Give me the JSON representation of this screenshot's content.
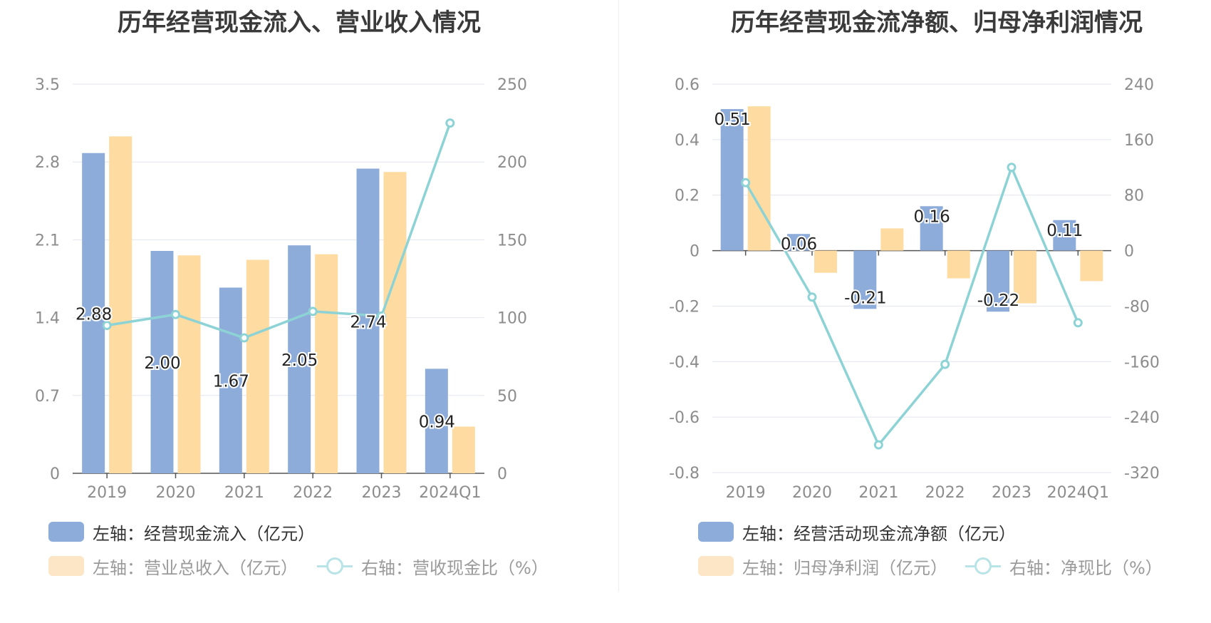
{
  "colors": {
    "bar_blue": "#8eacd9",
    "bar_yellow": "#fedba0",
    "line": "#8dd3d6",
    "legend_blue": "#8eacd9",
    "legend_yellow_faded": "#fde6c5",
    "legend_line_faded": "#b8e4e7",
    "text_active": "#333333",
    "text_faded": "#9a9a9a"
  },
  "chart_data": [
    {
      "type": "bar",
      "title": "历年经营现金流入、营业收入情况",
      "categories": [
        "2019",
        "2020",
        "2021",
        "2022",
        "2023",
        "2024Q1"
      ],
      "left_axis": {
        "min": 0,
        "max": 3.5,
        "ticks": [
          "0",
          "0.7",
          "1.4",
          "2.1",
          "2.8",
          "3.5"
        ]
      },
      "right_axis": {
        "min": 0,
        "max": 250,
        "ticks": [
          "0",
          "50",
          "100",
          "150",
          "200",
          "250"
        ]
      },
      "series": [
        {
          "name": "经营现金流入",
          "axis": "left",
          "kind": "bar",
          "color_key": "bar_blue",
          "values": [
            2.88,
            2.0,
            1.67,
            2.05,
            2.74,
            0.94
          ],
          "labels": [
            "2.88",
            "2.00",
            "1.67",
            "2.05",
            "2.74",
            "0.94"
          ]
        },
        {
          "name": "营业总收入",
          "axis": "left",
          "kind": "bar",
          "color_key": "bar_yellow",
          "values": [
            3.03,
            1.96,
            1.92,
            1.97,
            2.71,
            0.42
          ]
        },
        {
          "name": "营收现金比",
          "axis": "right",
          "kind": "line",
          "color_key": "line",
          "values": [
            95,
            102,
            87,
            104,
            101,
            225
          ]
        }
      ],
      "legend": [
        {
          "label": "左轴：经营现金流入（亿元）",
          "style": "swatch",
          "active": true
        },
        {
          "label": "左轴：营业总收入（亿元）",
          "style": "swatch",
          "active": false
        },
        {
          "label": "右轴：营收现金比（%）",
          "style": "line",
          "active": false
        }
      ]
    },
    {
      "type": "bar",
      "title": "历年经营现金流净额、归母净利润情况",
      "categories": [
        "2019",
        "2020",
        "2021",
        "2022",
        "2023",
        "2024Q1"
      ],
      "left_axis": {
        "min": -0.8,
        "max": 0.6,
        "ticks": [
          "-0.8",
          "-0.6",
          "-0.4",
          "-0.2",
          "0",
          "0.2",
          "0.4",
          "0.6"
        ]
      },
      "right_axis": {
        "min": -320,
        "max": 240,
        "ticks": [
          "-320",
          "-240",
          "-160",
          "-80",
          "0",
          "80",
          "160",
          "240"
        ]
      },
      "series": [
        {
          "name": "经营活动现金流净额",
          "axis": "left",
          "kind": "bar",
          "color_key": "bar_blue",
          "values": [
            0.51,
            0.06,
            -0.21,
            0.16,
            -0.22,
            0.11
          ],
          "labels": [
            "0.51",
            "0.06",
            "-0.21",
            "0.16",
            "-0.22",
            "0.11"
          ]
        },
        {
          "name": "归母净利润",
          "axis": "left",
          "kind": "bar",
          "color_key": "bar_yellow",
          "values": [
            0.52,
            -0.08,
            0.08,
            -0.1,
            -0.19,
            -0.11
          ]
        },
        {
          "name": "净现比",
          "axis": "right",
          "kind": "line",
          "color_key": "line",
          "values": [
            98,
            -67,
            -280,
            -164,
            120,
            -104
          ]
        }
      ],
      "legend": [
        {
          "label": "左轴：经营活动现金流净额（亿元）",
          "style": "swatch",
          "active": true
        },
        {
          "label": "左轴：归母净利润（亿元）",
          "style": "swatch",
          "active": false
        },
        {
          "label": "右轴：净现比（%）",
          "style": "line",
          "active": false
        }
      ]
    }
  ]
}
